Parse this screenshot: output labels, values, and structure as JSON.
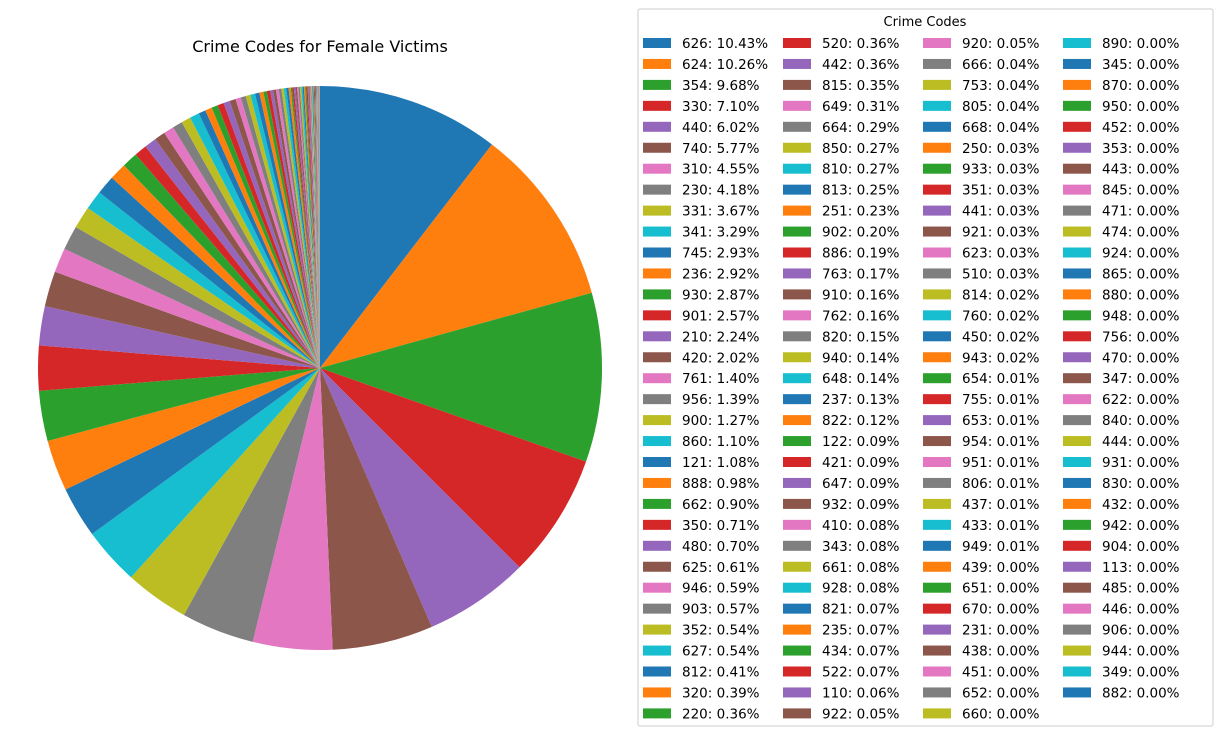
{
  "chart_data": {
    "type": "pie",
    "title": "Crime Codes for Female Victims",
    "legend_title": "Crime Codes",
    "legend_placement": "right",
    "labels": [
      "626",
      "624",
      "354",
      "330",
      "440",
      "740",
      "310",
      "230",
      "331",
      "341",
      "745",
      "236",
      "930",
      "901",
      "210",
      "420",
      "761",
      "956",
      "900",
      "860",
      "121",
      "888",
      "662",
      "350",
      "480",
      "625",
      "946",
      "903",
      "352",
      "627",
      "812",
      "320",
      "220",
      "520",
      "442",
      "815",
      "649",
      "664",
      "850",
      "810",
      "813",
      "251",
      "902",
      "886",
      "763",
      "910",
      "762",
      "820",
      "940",
      "648",
      "237",
      "822",
      "122",
      "421",
      "647",
      "932",
      "410",
      "343",
      "661",
      "928",
      "821",
      "235",
      "434",
      "522",
      "110",
      "922",
      "920",
      "666",
      "753",
      "805",
      "668",
      "250",
      "933",
      "351",
      "441",
      "921",
      "623",
      "510",
      "814",
      "760",
      "450",
      "943",
      "654",
      "755",
      "653",
      "954",
      "951",
      "806",
      "437",
      "433",
      "949",
      "439",
      "651",
      "670",
      "231",
      "438",
      "451",
      "652",
      "660",
      "890",
      "345",
      "870",
      "950",
      "452",
      "353",
      "443",
      "845",
      "471",
      "474",
      "924",
      "865",
      "880",
      "948",
      "756",
      "470",
      "347",
      "622",
      "840",
      "444",
      "931",
      "830",
      "432",
      "942",
      "904",
      "113",
      "485",
      "446",
      "906",
      "944",
      "349",
      "882"
    ],
    "values": [
      10.43,
      10.26,
      9.68,
      7.1,
      6.02,
      5.77,
      4.55,
      4.18,
      3.67,
      3.29,
      2.93,
      2.92,
      2.87,
      2.57,
      2.24,
      2.02,
      1.4,
      1.39,
      1.27,
      1.1,
      1.08,
      0.98,
      0.9,
      0.71,
      0.7,
      0.61,
      0.59,
      0.57,
      0.54,
      0.54,
      0.41,
      0.39,
      0.36,
      0.36,
      0.36,
      0.35,
      0.31,
      0.29,
      0.27,
      0.27,
      0.25,
      0.23,
      0.2,
      0.19,
      0.17,
      0.16,
      0.16,
      0.15,
      0.14,
      0.14,
      0.13,
      0.12,
      0.09,
      0.09,
      0.09,
      0.09,
      0.08,
      0.08,
      0.08,
      0.08,
      0.07,
      0.07,
      0.07,
      0.07,
      0.06,
      0.05,
      0.05,
      0.04,
      0.04,
      0.04,
      0.04,
      0.03,
      0.03,
      0.03,
      0.03,
      0.03,
      0.03,
      0.03,
      0.02,
      0.02,
      0.02,
      0.02,
      0.01,
      0.01,
      0.01,
      0.01,
      0.01,
      0.01,
      0.01,
      0.01,
      0.01,
      0.0,
      0.0,
      0.0,
      0.0,
      0.0,
      0.0,
      0.0,
      0.0,
      0.0,
      0.0,
      0.0,
      0.0,
      0.0,
      0.0,
      0.0,
      0.0,
      0.0,
      0.0,
      0.0,
      0.0,
      0.0,
      0.0,
      0.0,
      0.0,
      0.0,
      0.0,
      0.0,
      0.0,
      0.0,
      0.0,
      0.0,
      0.0,
      0.0,
      0.0,
      0.0,
      0.0,
      0.0,
      0.0,
      0.0,
      0.0
    ],
    "colors": [
      "#1f77b4",
      "#ff7f0e",
      "#2ca02c",
      "#d62728",
      "#9467bd",
      "#8c564b",
      "#e377c2",
      "#7f7f7f",
      "#bcbd22",
      "#17becf"
    ]
  }
}
